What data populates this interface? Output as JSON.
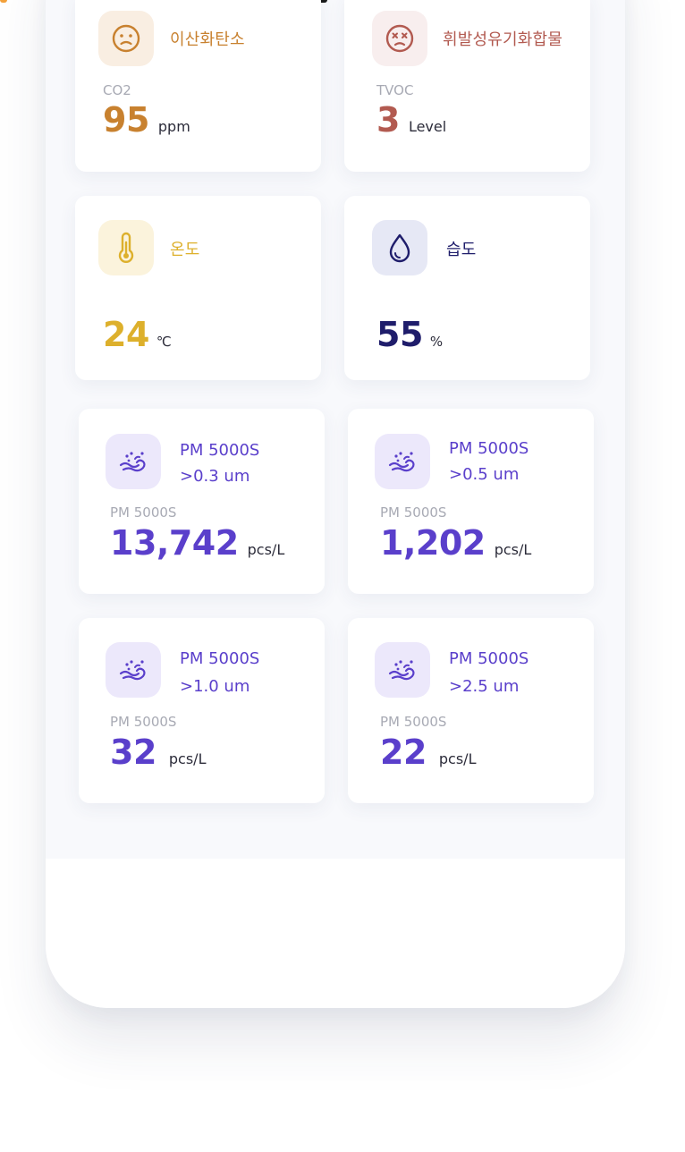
{
  "colors": {
    "co2": "#c8812f",
    "tvoc": "#b25a50",
    "temperature": "#ddb02c",
    "humidity": "#1f1d6b",
    "pm": "#5a3fcb"
  },
  "cards": {
    "co2": {
      "icon": "worried-face-icon",
      "title": "이산화탄소",
      "label": "CO2",
      "value": "95",
      "unit": "ppm"
    },
    "tvoc": {
      "icon": "dizzy-face-icon",
      "title": "휘발성유기화합물",
      "label": "TVOC",
      "value": "3",
      "unit": "Level"
    },
    "temperature": {
      "icon": "thermometer-icon",
      "title": "온도",
      "value": "24",
      "unit": "℃"
    },
    "humidity": {
      "icon": "water-drop-icon",
      "title": "습도",
      "value": "55",
      "unit": "%"
    },
    "pm03": {
      "icon": "dust-wind-icon",
      "title_line1": "PM 5000S",
      "title_line2": ">0.3 um",
      "label": "PM 5000S",
      "value": "13,742",
      "unit": "pcs/L"
    },
    "pm05": {
      "icon": "dust-wind-icon",
      "title_line1": "PM 5000S",
      "title_line2": ">0.5 um",
      "label": "PM 5000S",
      "value": "1,202",
      "unit": "pcs/L"
    },
    "pm10": {
      "icon": "dust-wind-icon",
      "title_line1": "PM 5000S",
      "title_line2": ">1.0 um",
      "label": "PM 5000S",
      "value": "32",
      "unit": "pcs/L"
    },
    "pm25": {
      "icon": "dust-wind-icon",
      "title_line1": "PM 5000S",
      "title_line2": ">2.5 um",
      "label": "PM 5000S",
      "value": "22",
      "unit": "pcs/L"
    }
  }
}
